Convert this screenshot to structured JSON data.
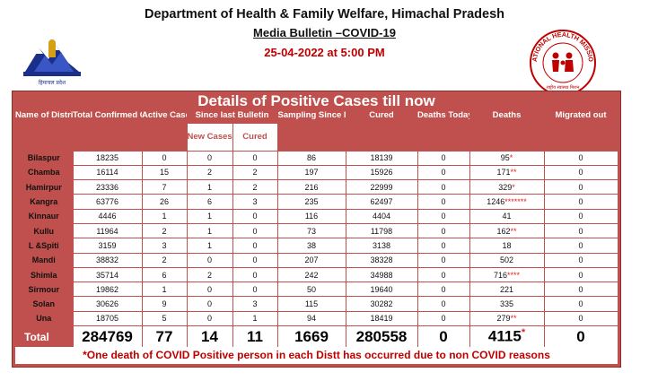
{
  "header": {
    "department": "Department of Health & Family Welfare, Himachal Pradesh",
    "bulletin": "Media Bulletin –COVID-19",
    "datetime": "25-04-2022 at 5:00 PM"
  },
  "logos": {
    "nhm_text": "NATIONAL HEALTH MISSION",
    "nhm_sub": "राष्ट्रीय स्वास्थ्य मिशन",
    "hp_caption": "हिमाचल प्रदेश"
  },
  "table": {
    "title": "Details of Positive Cases till now",
    "headers": {
      "district": "Name of District",
      "total": "Total Confirmed Cases",
      "active": "Active Cases",
      "since_last": "Since last Bulletin",
      "new_cases": "New Cases",
      "cured_since": "Cured",
      "sampling": "Sampling Since last Bulletin",
      "cured": "Cured",
      "deaths_today": "Deaths Today",
      "deaths": "Deaths",
      "migrated": "Migrated out"
    },
    "rows": [
      {
        "district": "Bilaspur",
        "total": "18235",
        "active": "0",
        "new_cases": "0",
        "cured_since": "0",
        "sampling": "86",
        "cured": "18139",
        "deaths_today": "0",
        "deaths": "95",
        "deaths_mark": "*",
        "migrated": "0"
      },
      {
        "district": "Chamba",
        "total": "16114",
        "active": "15",
        "new_cases": "2",
        "cured_since": "2",
        "sampling": "197",
        "cured": "15926",
        "deaths_today": "0",
        "deaths": "171",
        "deaths_mark": "**",
        "migrated": "0"
      },
      {
        "district": "Hamirpur",
        "total": "23336",
        "active": "7",
        "new_cases": "1",
        "cured_since": "2",
        "sampling": "216",
        "cured": "22999",
        "deaths_today": "0",
        "deaths": "329",
        "deaths_mark": "*",
        "migrated": "0"
      },
      {
        "district": "Kangra",
        "total": "63776",
        "active": "26",
        "new_cases": "6",
        "cured_since": "3",
        "sampling": "235",
        "cured": "62497",
        "deaths_today": "0",
        "deaths": "1246",
        "deaths_mark": "*******",
        "migrated": "0"
      },
      {
        "district": "Kinnaur",
        "total": "4446",
        "active": "1",
        "new_cases": "1",
        "cured_since": "0",
        "sampling": "116",
        "cured": "4404",
        "deaths_today": "0",
        "deaths": "41",
        "deaths_mark": "",
        "migrated": "0"
      },
      {
        "district": "Kullu",
        "total": "11964",
        "active": "2",
        "new_cases": "1",
        "cured_since": "0",
        "sampling": "73",
        "cured": "11798",
        "deaths_today": "0",
        "deaths": "162",
        "deaths_mark": "**",
        "migrated": "0"
      },
      {
        "district": "L &Spiti",
        "total": "3159",
        "active": "3",
        "new_cases": "1",
        "cured_since": "0",
        "sampling": "38",
        "cured": "3138",
        "deaths_today": "0",
        "deaths": "18",
        "deaths_mark": "",
        "migrated": "0"
      },
      {
        "district": "Mandi",
        "total": "38832",
        "active": "2",
        "new_cases": "0",
        "cured_since": "0",
        "sampling": "207",
        "cured": "38328",
        "deaths_today": "0",
        "deaths": "502",
        "deaths_mark": "",
        "migrated": "0"
      },
      {
        "district": "Shimla",
        "total": "35714",
        "active": "6",
        "new_cases": "2",
        "cured_since": "0",
        "sampling": "242",
        "cured": "34988",
        "deaths_today": "0",
        "deaths": "716",
        "deaths_mark": "****",
        "migrated": "0"
      },
      {
        "district": "Sirmour",
        "total": "19862",
        "active": "1",
        "new_cases": "0",
        "cured_since": "0",
        "sampling": "50",
        "cured": "19640",
        "deaths_today": "0",
        "deaths": "221",
        "deaths_mark": "",
        "migrated": "0"
      },
      {
        "district": "Solan",
        "total": "30626",
        "active": "9",
        "new_cases": "0",
        "cured_since": "3",
        "sampling": "115",
        "cured": "30282",
        "deaths_today": "0",
        "deaths": "335",
        "deaths_mark": "",
        "migrated": "0"
      },
      {
        "district": "Una",
        "total": "18705",
        "active": "5",
        "new_cases": "0",
        "cured_since": "1",
        "sampling": "94",
        "cured": "18419",
        "deaths_today": "0",
        "deaths": "279",
        "deaths_mark": "**",
        "migrated": "0"
      }
    ],
    "total": {
      "label": "Total",
      "total": "284769",
      "active": "77",
      "new_cases": "14",
      "cured_since": "11",
      "sampling": "1669",
      "cured": "280558",
      "deaths_today": "0",
      "deaths": "4115",
      "deaths_mark": "*",
      "migrated": "0"
    },
    "footnote": "*One death of COVID Positive person in each Distt has occurred due to non COVID reasons"
  }
}
